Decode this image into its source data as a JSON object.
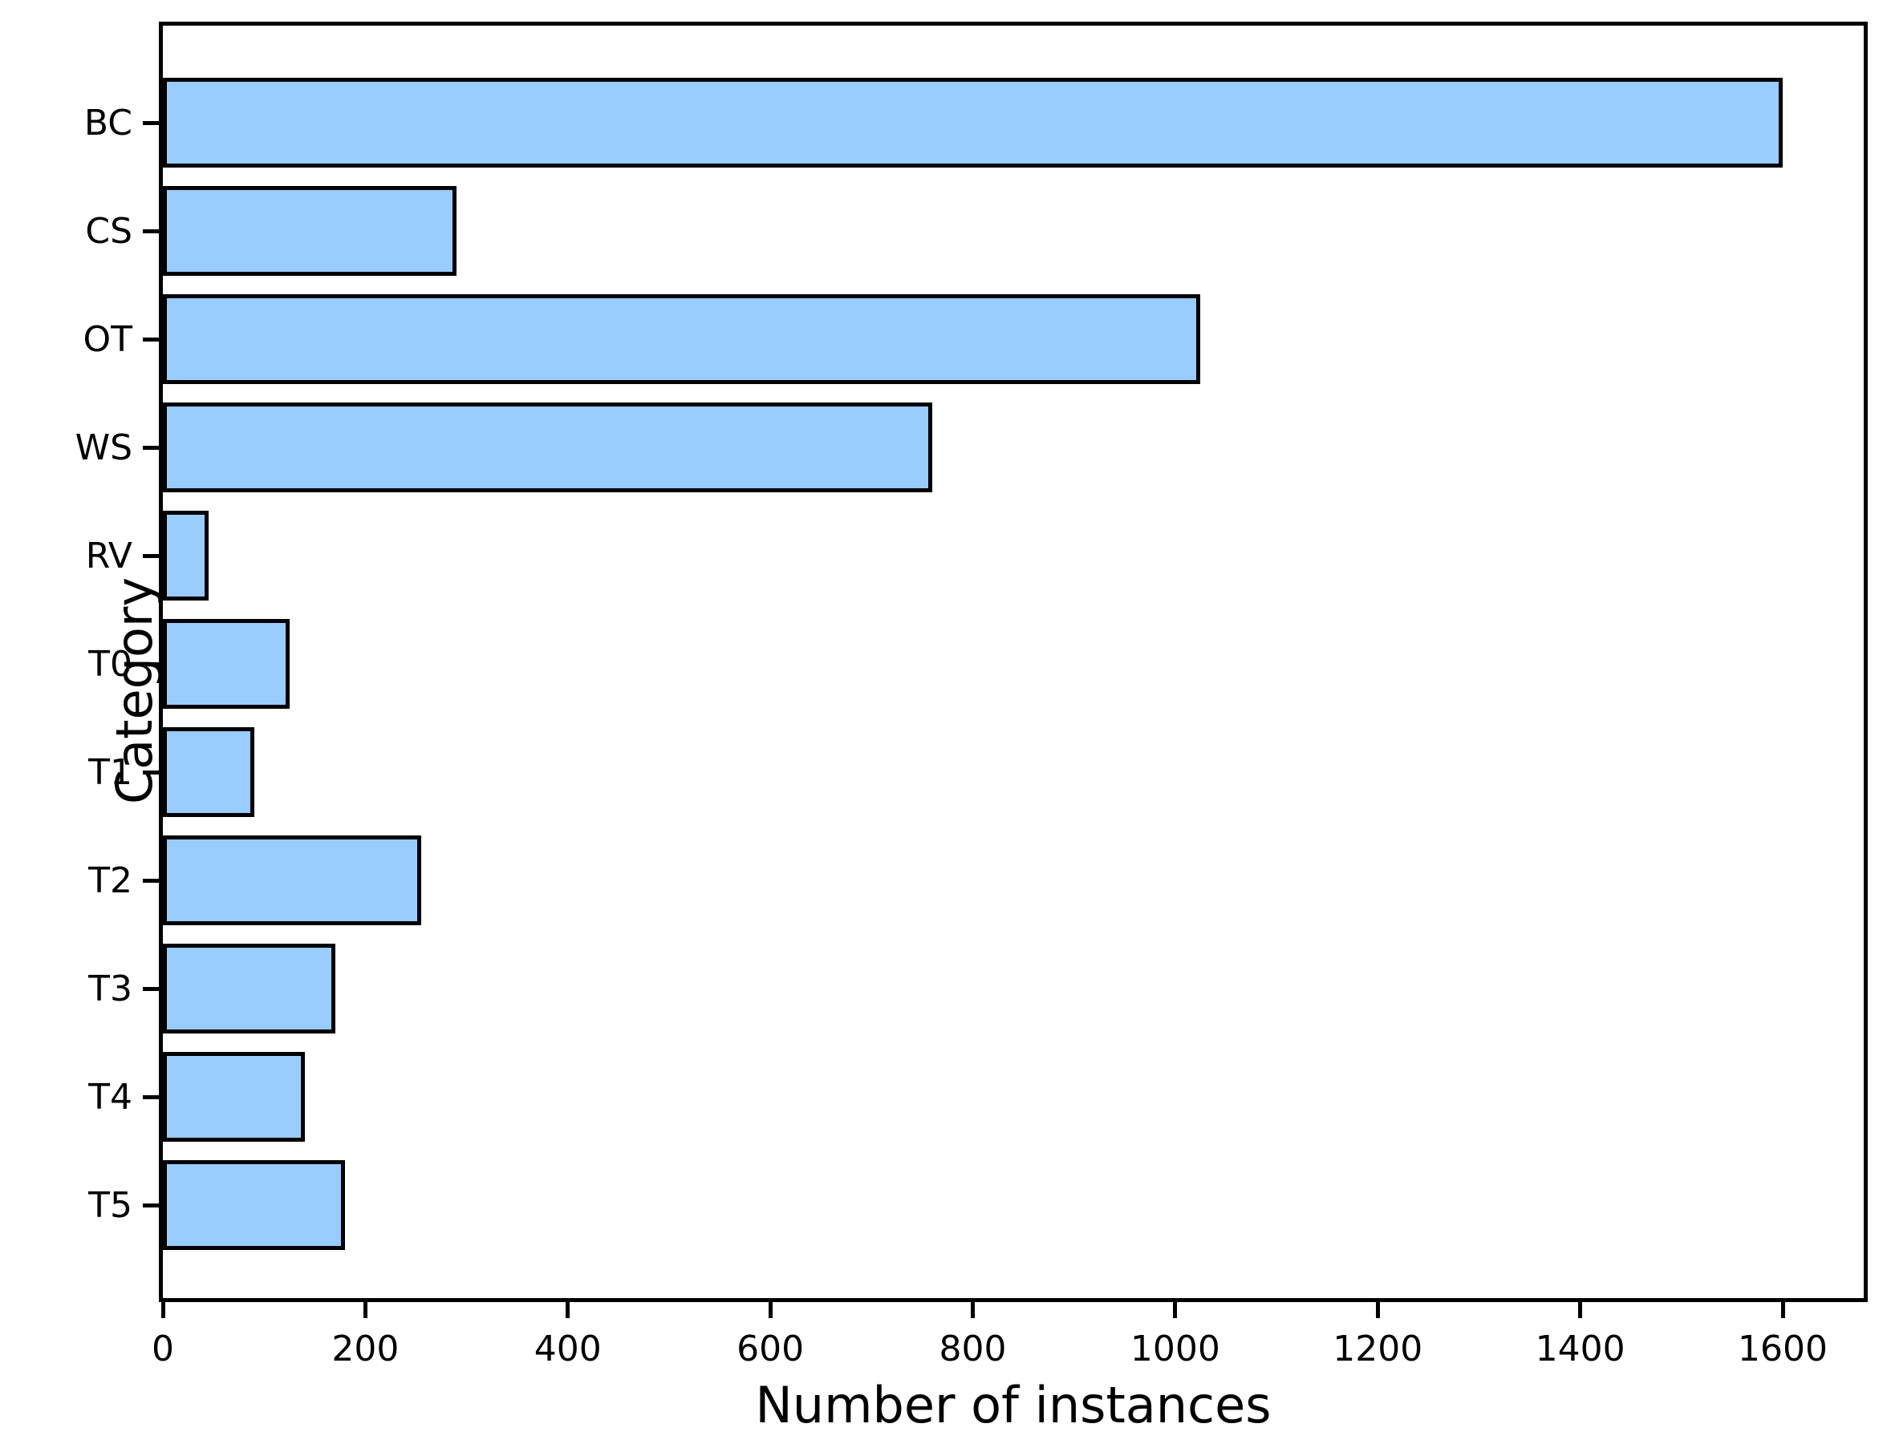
{
  "figure": {
    "background": "#ffffff",
    "bar_fill": "#99ccff",
    "bar_edge": "#000000",
    "spine_color": "#000000"
  },
  "chart_data": {
    "type": "bar",
    "orientation": "horizontal",
    "title": "",
    "xlabel": "Number of instances",
    "ylabel": "Category",
    "categories": [
      "BC",
      "CS",
      "OT",
      "WS",
      "RV",
      "T0",
      "T1",
      "T2",
      "T3",
      "T4",
      "T5"
    ],
    "values": [
      1600,
      290,
      1025,
      760,
      45,
      125,
      90,
      255,
      170,
      140,
      180
    ],
    "xlim": [
      0,
      1680
    ],
    "xticks": [
      0,
      200,
      400,
      600,
      800,
      1000,
      1200,
      1400,
      1600
    ],
    "grid": false,
    "legend": null,
    "spines": "box",
    "tick_direction": "out"
  }
}
